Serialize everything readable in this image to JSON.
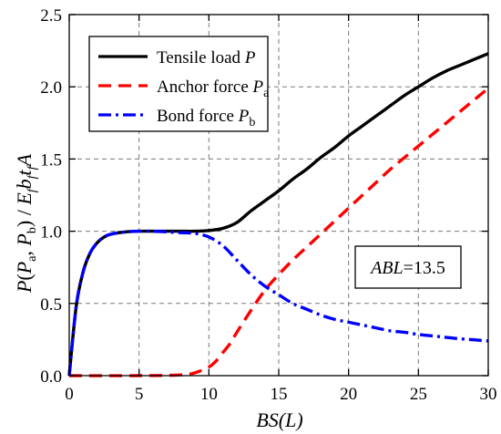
{
  "chart_data": {
    "type": "line",
    "xlabel": "BS(L)",
    "ylabel": {
      "main": "P",
      "paren_open": "(",
      "pa_main": "P",
      "pa_sub": "a",
      "comma": ", ",
      "pb_main": "P",
      "pb_sub": "b",
      "close_div": ") / ",
      "e": "E",
      "e_sub": "f",
      "b": "b",
      "b_sub": "f",
      "t": "t",
      "t_sub": "f",
      "a": "A"
    },
    "xlim": [
      0,
      30
    ],
    "ylim": [
      0,
      2.5
    ],
    "xticks": [
      0,
      5,
      10,
      15,
      20,
      25,
      30
    ],
    "yticks": [
      0.0,
      0.5,
      1.0,
      1.5,
      2.0,
      2.5
    ],
    "xtick_labels": [
      "0",
      "5",
      "10",
      "15",
      "20",
      "25",
      "30"
    ],
    "ytick_labels": [
      "0.0",
      "0.5",
      "1.0",
      "1.5",
      "2.0",
      "2.5"
    ],
    "grid": true,
    "legend_position": "top-left",
    "series": [
      {
        "name": "Tensile load P",
        "label_main": "Tensile load ",
        "label_var": "P",
        "label_sub": "",
        "color": "#000000",
        "style": "solid",
        "x": [
          0,
          0.5,
          1,
          1.5,
          2,
          2.5,
          3,
          4,
          5,
          6,
          7,
          8,
          9,
          10,
          11,
          12,
          13,
          14,
          15,
          16,
          17,
          18,
          19,
          20,
          21,
          22,
          23,
          24,
          25,
          26,
          27,
          28,
          29,
          30
        ],
        "y": [
          0,
          0.48,
          0.72,
          0.85,
          0.92,
          0.96,
          0.98,
          0.995,
          1.0,
          1.0,
          1.0,
          1.0,
          1.0,
          1.005,
          1.02,
          1.06,
          1.14,
          1.21,
          1.28,
          1.36,
          1.43,
          1.51,
          1.58,
          1.66,
          1.73,
          1.8,
          1.87,
          1.94,
          2.0,
          2.06,
          2.11,
          2.15,
          2.19,
          2.23
        ]
      },
      {
        "name": "Anchor force Pa",
        "label_main": "Anchor force ",
        "label_var": "P",
        "label_sub": "a",
        "color": "#ff0000",
        "style": "dashed",
        "x": [
          0,
          5,
          8,
          9,
          10,
          10.5,
          11,
          11.5,
          12,
          13,
          14,
          15,
          16,
          17,
          18,
          19,
          20,
          21,
          22,
          23,
          24,
          25,
          26,
          27,
          28,
          29,
          30
        ],
        "y": [
          0,
          0,
          0.005,
          0.02,
          0.06,
          0.1,
          0.16,
          0.22,
          0.3,
          0.45,
          0.59,
          0.7,
          0.8,
          0.89,
          0.98,
          1.07,
          1.16,
          1.25,
          1.34,
          1.43,
          1.51,
          1.59,
          1.67,
          1.75,
          1.83,
          1.91,
          1.99
        ]
      },
      {
        "name": "Bond force Pb",
        "label_main": "Bond force ",
        "label_var": "P",
        "label_sub": "b",
        "color": "#0000ff",
        "style": "dashdot",
        "x": [
          0,
          0.5,
          1,
          1.5,
          2,
          2.5,
          3,
          4,
          5,
          6,
          7,
          8,
          9,
          10,
          11,
          12,
          13,
          14,
          15,
          16,
          17,
          18,
          19,
          20,
          21,
          22,
          23,
          24,
          25,
          26,
          27,
          28,
          29,
          30
        ],
        "y": [
          0,
          0.48,
          0.72,
          0.85,
          0.92,
          0.96,
          0.98,
          0.995,
          1.0,
          1.0,
          0.995,
          0.99,
          0.985,
          0.96,
          0.9,
          0.8,
          0.7,
          0.62,
          0.56,
          0.5,
          0.46,
          0.42,
          0.39,
          0.37,
          0.35,
          0.33,
          0.31,
          0.3,
          0.285,
          0.275,
          0.265,
          0.255,
          0.248,
          0.24
        ]
      }
    ],
    "annotation": {
      "var": "ABL",
      "rest": "=13.5"
    }
  }
}
